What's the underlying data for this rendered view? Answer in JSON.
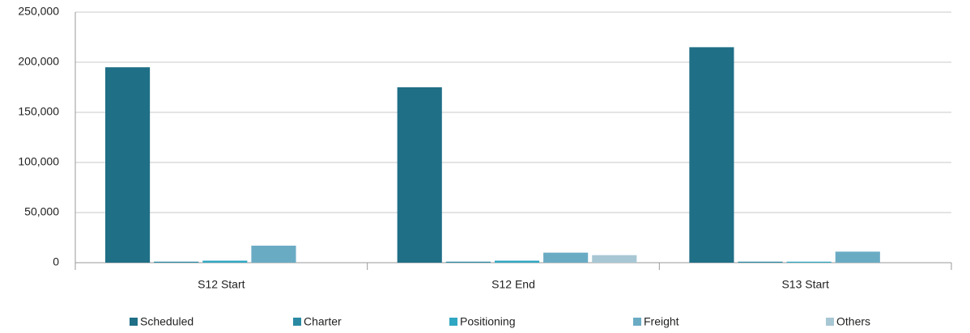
{
  "chart_data": {
    "type": "bar",
    "categories": [
      "S12 Start",
      "S12 End",
      "S13 Start"
    ],
    "series": [
      {
        "name": "Scheduled",
        "color": "#1f6f86",
        "values": [
          195000,
          175000,
          215000
        ]
      },
      {
        "name": "Charter",
        "color": "#2a8aa3",
        "values": [
          1000,
          1000,
          1000
        ]
      },
      {
        "name": "Positioning",
        "color": "#30a7c2",
        "values": [
          2000,
          2000,
          1000
        ]
      },
      {
        "name": "Freight",
        "color": "#6aabc4",
        "values": [
          17000,
          10000,
          11000
        ]
      },
      {
        "name": "Others",
        "color": "#a8c7d4",
        "values": [
          0,
          7500,
          0
        ]
      }
    ],
    "ylim": [
      0,
      250000
    ],
    "yticks": [
      0,
      {
        "value": 50000,
        "label": "50,000"
      },
      {
        "value": 100000,
        "label": "100,000"
      },
      {
        "value": 150000,
        "label": "150,000"
      },
      {
        "value": 200000,
        "label": "200,000"
      },
      {
        "value": 250000,
        "label": "250,000"
      }
    ],
    "grid": true,
    "legend": "bottom"
  }
}
